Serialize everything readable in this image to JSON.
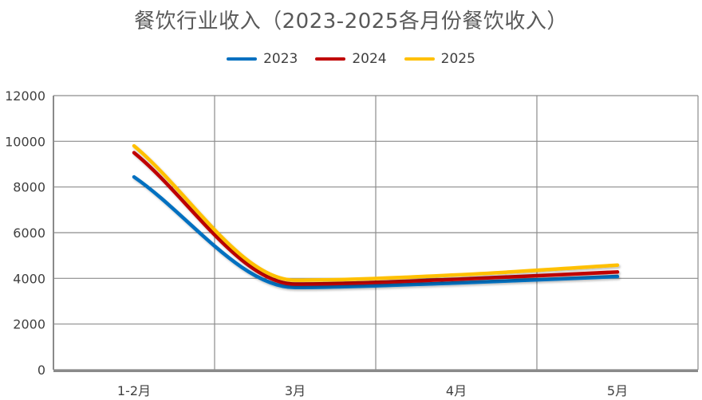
{
  "chart_data": {
    "type": "line",
    "title": "餐饮行业收入（2023-2025各月份餐饮收入）",
    "xlabel": "",
    "ylabel": "",
    "categories": [
      "1-2月",
      "3月",
      "4月",
      "5月"
    ],
    "ylim": [
      0,
      12000
    ],
    "yticks": [
      0,
      2000,
      4000,
      6000,
      8000,
      10000,
      12000
    ],
    "grid": true,
    "legend_position": "top",
    "series": [
      {
        "name": "2023",
        "color": "#0070C0",
        "values": [
          8440,
          3600,
          3800,
          4080
        ]
      },
      {
        "name": "2024",
        "color": "#C00000",
        "values": [
          9500,
          3750,
          3960,
          4280
        ]
      },
      {
        "name": "2025",
        "color": "#FFC000",
        "values": [
          9800,
          3920,
          4150,
          4580
        ]
      }
    ]
  }
}
